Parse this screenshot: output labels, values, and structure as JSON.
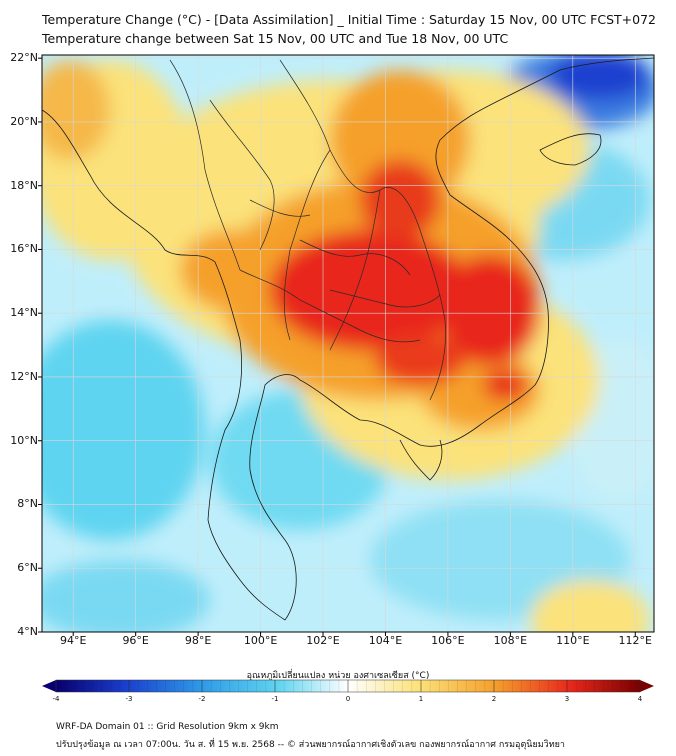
{
  "title_line1": "Temperature Change (°C) - [Data Assimilation] _ Initial Time : Saturday 15 Nov, 00 UTC FCST+072",
  "title_line2": "Temperature change between Sat 15 Nov, 00 UTC and Tue 18 Nov, 00 UTC",
  "lat_labels": [
    "22°N",
    "20°N",
    "18°N",
    "16°N",
    "14°N",
    "12°N",
    "10°N",
    "8°N",
    "6°N",
    "4°N"
  ],
  "lat_values": [
    22,
    20,
    18,
    16,
    14,
    12,
    10,
    8,
    6,
    4
  ],
  "lon_labels": [
    "94°E",
    "96°E",
    "98°E",
    "100°E",
    "102°E",
    "104°E",
    "106°E",
    "108°E",
    "110°E",
    "112°E"
  ],
  "lon_values": [
    94,
    96,
    98,
    100,
    102,
    104,
    106,
    108,
    110,
    112
  ],
  "colorbar": {
    "label": "อุณหภูมิเปลี่ยนแปลง หน่วย องศาเซลเซียส (°C)",
    "ticks": [
      "-4",
      "-3",
      "-2",
      "-1",
      "0",
      "1",
      "2",
      "3",
      "4"
    ],
    "min": -4,
    "max": 4
  },
  "footer_line1": "WRF-DA Domain 01 :: Grid Resolution 9km x 9km",
  "footer_line2": "ปรับปรุงข้อมูล ณ เวลา 07:00น. วัน ส. ที่ 15 พ.ย. 2568 -- © ส่วนพยากรณ์อากาศเชิงตัวเลข กองพยากรณ์อากาศ กรมอุตุนิยมวิทยา",
  "colors": {
    "red": "#e8281c",
    "orange": "#f5a02c",
    "yellow": "#fbe27a",
    "cyan": "#5fd4f0",
    "blue": "#1a3fcf",
    "dark_red": "#7a0000",
    "dark_blue": "#08006e"
  }
}
